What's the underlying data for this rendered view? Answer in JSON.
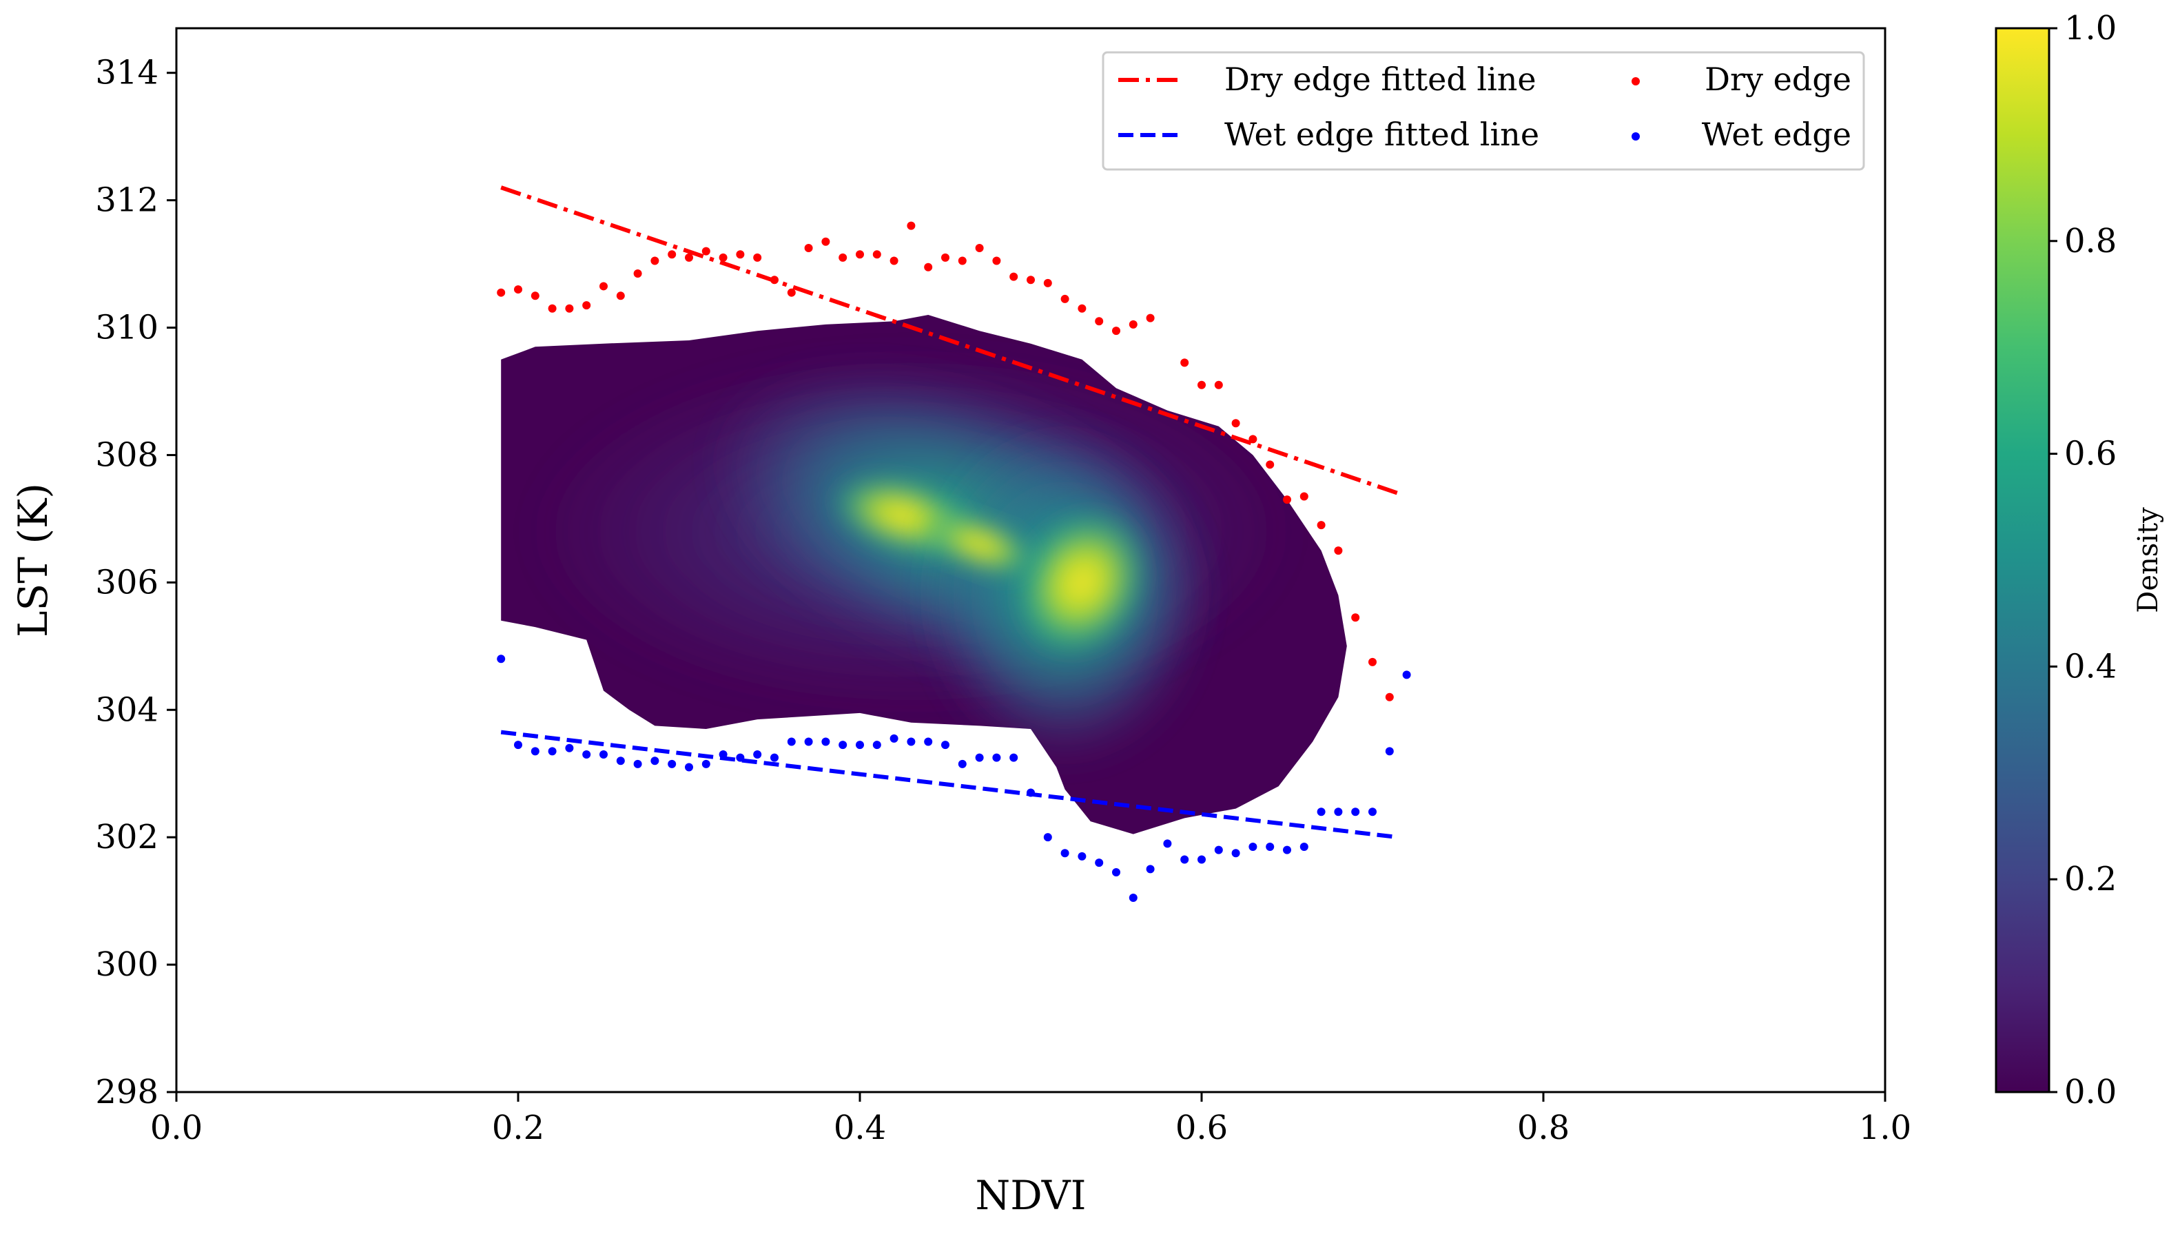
{
  "chart_data": {
    "type": "scatter",
    "xlabel": "NDVI",
    "ylabel": "LST (K)",
    "xlim": [
      0.0,
      1.0
    ],
    "ylim": [
      298,
      314.7
    ],
    "xticks": [
      "0.0",
      "0.2",
      "0.4",
      "0.6",
      "0.8",
      "1.0"
    ],
    "yticks": [
      "298",
      "300",
      "302",
      "304",
      "306",
      "308",
      "310",
      "312",
      "314"
    ],
    "legend": {
      "position": "top-right",
      "entries": [
        "Dry edge fitted line",
        "Wet edge fitted line",
        "Dry edge",
        "Wet edge"
      ]
    },
    "colorbar": {
      "label": "Density",
      "range": [
        0.0,
        1.0
      ],
      "ticks": [
        "0.0",
        "0.2",
        "0.4",
        "0.6",
        "0.8",
        "1.0"
      ],
      "colormap": "viridis"
    },
    "dry_edge_fit": {
      "x": [
        0.19,
        0.715
      ],
      "y": [
        312.2,
        307.4
      ]
    },
    "wet_edge_fit": {
      "x": [
        0.19,
        0.715
      ],
      "y": [
        303.65,
        302.0
      ]
    },
    "dry_edge_points": {
      "x": [
        0.19,
        0.2,
        0.21,
        0.22,
        0.23,
        0.24,
        0.25,
        0.26,
        0.27,
        0.28,
        0.29,
        0.3,
        0.31,
        0.32,
        0.33,
        0.34,
        0.35,
        0.36,
        0.37,
        0.38,
        0.39,
        0.4,
        0.41,
        0.42,
        0.43,
        0.44,
        0.45,
        0.46,
        0.47,
        0.48,
        0.49,
        0.5,
        0.51,
        0.52,
        0.53,
        0.54,
        0.55,
        0.56,
        0.57,
        0.59,
        0.6,
        0.61,
        0.62,
        0.63,
        0.64,
        0.65,
        0.66,
        0.67,
        0.68,
        0.69,
        0.7,
        0.71
      ],
      "y": [
        310.55,
        310.6,
        310.5,
        310.3,
        310.3,
        310.35,
        310.65,
        310.5,
        310.85,
        311.05,
        311.15,
        311.1,
        311.2,
        311.1,
        311.15,
        311.1,
        310.75,
        310.55,
        311.25,
        311.35,
        311.1,
        311.15,
        311.15,
        311.05,
        311.6,
        310.95,
        311.1,
        311.05,
        311.25,
        311.05,
        310.8,
        310.75,
        310.7,
        310.45,
        310.3,
        310.1,
        309.95,
        310.05,
        310.15,
        309.45,
        309.1,
        309.1,
        308.5,
        308.25,
        307.85,
        307.3,
        307.35,
        306.9,
        306.5,
        305.45,
        304.75,
        304.2
      ]
    },
    "wet_edge_points": {
      "x": [
        0.19,
        0.2,
        0.21,
        0.22,
        0.23,
        0.24,
        0.25,
        0.26,
        0.27,
        0.28,
        0.29,
        0.3,
        0.31,
        0.32,
        0.33,
        0.34,
        0.35,
        0.36,
        0.37,
        0.38,
        0.39,
        0.4,
        0.41,
        0.42,
        0.43,
        0.44,
        0.45,
        0.46,
        0.47,
        0.48,
        0.49,
        0.5,
        0.51,
        0.52,
        0.53,
        0.54,
        0.55,
        0.56,
        0.57,
        0.58,
        0.59,
        0.6,
        0.61,
        0.62,
        0.63,
        0.64,
        0.65,
        0.66,
        0.67,
        0.68,
        0.69,
        0.7,
        0.71,
        0.72
      ],
      "y": [
        304.8,
        303.45,
        303.35,
        303.35,
        303.4,
        303.3,
        303.3,
        303.2,
        303.15,
        303.2,
        303.15,
        303.1,
        303.15,
        303.3,
        303.25,
        303.3,
        303.25,
        303.5,
        303.5,
        303.5,
        303.45,
        303.45,
        303.45,
        303.55,
        303.5,
        303.5,
        303.45,
        303.15,
        303.25,
        303.25,
        303.25,
        302.7,
        302.0,
        301.75,
        301.7,
        301.6,
        301.45,
        301.05,
        301.5,
        301.9,
        301.65,
        301.65,
        301.8,
        301.75,
        301.85,
        301.85,
        301.8,
        301.85,
        302.4,
        302.4,
        302.4,
        302.4,
        303.35,
        304.55
      ]
    }
  }
}
